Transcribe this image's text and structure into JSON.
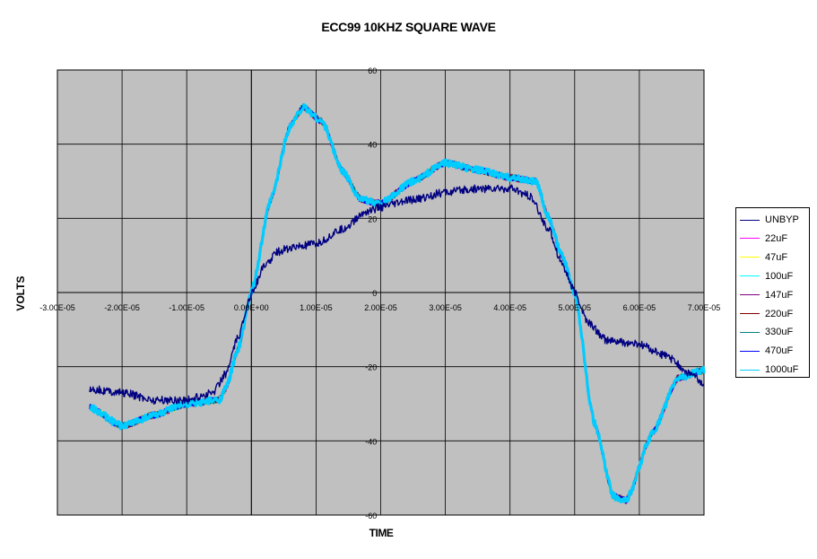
{
  "chart_data": {
    "type": "line",
    "title": "ECC99 10KHZ SQUARE WAVE",
    "xlabel": "TIME",
    "ylabel": "VOLTS",
    "xlim": [
      -3e-05,
      7e-05
    ],
    "ylim": [
      -60,
      60
    ],
    "x_ticks": [
      -3e-05,
      -2e-05,
      -1e-05,
      0,
      1e-05,
      2e-05,
      3e-05,
      4e-05,
      5e-05,
      6e-05,
      7e-05
    ],
    "x_tick_labels": [
      "-3.00E-05",
      "-2.00E-05",
      "-1.00E-05",
      "0.00E+00",
      "1.00E-05",
      "2.00E-05",
      "3.00E-05",
      "4.00E-05",
      "5.00E-05",
      "6.00E-05",
      "7.00E-05"
    ],
    "y_ticks": [
      -60,
      -40,
      -20,
      0,
      20,
      40,
      60
    ],
    "y_tick_labels": [
      "-60",
      "-40",
      "-20",
      "0",
      "20",
      "40",
      "60"
    ],
    "grid": true,
    "legend_position": "right",
    "plot_background": "#c0c0c0",
    "series": [
      {
        "name": "UNBYP",
        "color": "#000080",
        "x": [
          -2.5e-05,
          -2e-05,
          -1.5e-05,
          -1e-05,
          -6e-06,
          -4e-06,
          -2e-06,
          0,
          2e-06,
          4e-06,
          6e-06,
          1e-05,
          1.4e-05,
          1.8e-05,
          2e-05,
          2.5e-05,
          3e-05,
          3.5e-05,
          4e-05,
          4.3e-05,
          4.6e-05,
          4.8e-05,
          5e-05,
          5.2e-05,
          5.5e-05,
          6e-05,
          6.4e-05,
          6.8e-05,
          7e-05
        ],
        "y": [
          -26,
          -27,
          -29,
          -29,
          -27,
          -22,
          -12,
          0,
          7,
          11,
          12,
          13,
          17,
          22,
          23,
          25,
          27,
          28,
          28,
          26,
          17,
          8,
          0,
          -8,
          -13,
          -14,
          -17,
          -22,
          -25
        ]
      },
      {
        "name": "22uF",
        "color": "#ff00ff",
        "x": [
          -2.5e-05,
          -2e-05,
          -1.5e-05,
          -1e-05,
          -5e-06,
          -4e-06,
          -2e-06,
          0,
          3e-06,
          6e-06,
          8e-06,
          1.1e-05,
          1.4e-05,
          1.7e-05,
          2e-05,
          2.5e-05,
          3e-05,
          3.5e-05,
          4e-05,
          4.4e-05,
          4.6e-05,
          4.8e-05,
          5e-05,
          5.3e-05,
          5.6e-05,
          5.8e-05,
          6.2e-05,
          6.6e-05,
          7e-05
        ],
        "y": [
          -31,
          -36,
          -33,
          -30,
          -29,
          -26,
          -15,
          0,
          25,
          45,
          50,
          46,
          33,
          25,
          24,
          30,
          35,
          33,
          31,
          30,
          20,
          10,
          0,
          -35,
          -55,
          -56,
          -38,
          -23,
          -21
        ]
      },
      {
        "name": "47uF",
        "color": "#ffff00",
        "x": [
          -2.5e-05,
          -2e-05,
          -1.5e-05,
          -1e-05,
          -5e-06,
          -4e-06,
          -2e-06,
          0,
          3e-06,
          6e-06,
          8e-06,
          1.1e-05,
          1.4e-05,
          1.7e-05,
          2e-05,
          2.5e-05,
          3e-05,
          3.5e-05,
          4e-05,
          4.4e-05,
          4.6e-05,
          4.8e-05,
          5e-05,
          5.3e-05,
          5.6e-05,
          5.8e-05,
          6.2e-05,
          6.6e-05,
          7e-05
        ],
        "y": [
          -31,
          -36,
          -33,
          -30,
          -29,
          -26,
          -15,
          0,
          25,
          45,
          50,
          46,
          33,
          25,
          24,
          30,
          35,
          33,
          31,
          30,
          20,
          10,
          0,
          -35,
          -55,
          -56,
          -38,
          -23,
          -21
        ]
      },
      {
        "name": "100uF",
        "color": "#00ffff",
        "x": [
          -2.5e-05,
          -2e-05,
          -1.5e-05,
          -1e-05,
          -5e-06,
          -4e-06,
          -2e-06,
          0,
          3e-06,
          6e-06,
          8e-06,
          1.1e-05,
          1.4e-05,
          1.7e-05,
          2e-05,
          2.5e-05,
          3e-05,
          3.5e-05,
          4e-05,
          4.4e-05,
          4.6e-05,
          4.8e-05,
          5e-05,
          5.3e-05,
          5.6e-05,
          5.8e-05,
          6.2e-05,
          6.6e-05,
          7e-05
        ],
        "y": [
          -31,
          -36,
          -33,
          -30,
          -29,
          -26,
          -15,
          0,
          25,
          45,
          50,
          46,
          33,
          25,
          24,
          30,
          35,
          33,
          31,
          30,
          20,
          10,
          0,
          -35,
          -55,
          -56,
          -38,
          -23,
          -21
        ]
      },
      {
        "name": "147uF",
        "color": "#800080",
        "x": [
          -2.5e-05,
          -2e-05,
          -1.5e-05,
          -1e-05,
          -5e-06,
          -4e-06,
          -2e-06,
          0,
          3e-06,
          6e-06,
          8e-06,
          1.1e-05,
          1.4e-05,
          1.7e-05,
          2e-05,
          2.5e-05,
          3e-05,
          3.5e-05,
          4e-05,
          4.4e-05,
          4.6e-05,
          4.8e-05,
          5e-05,
          5.3e-05,
          5.6e-05,
          5.8e-05,
          6.2e-05,
          6.6e-05,
          7e-05
        ],
        "y": [
          -31,
          -36,
          -33,
          -30,
          -29,
          -26,
          -15,
          0,
          25,
          45,
          50,
          46,
          33,
          25,
          24,
          30,
          35,
          33,
          31,
          30,
          20,
          10,
          0,
          -35,
          -55,
          -56,
          -38,
          -23,
          -21
        ]
      },
      {
        "name": "220uF",
        "color": "#800000",
        "x": [
          -2.5e-05,
          -2e-05,
          -1.5e-05,
          -1e-05,
          -5e-06,
          -4e-06,
          -2e-06,
          0,
          3e-06,
          6e-06,
          8e-06,
          1.1e-05,
          1.4e-05,
          1.7e-05,
          2e-05,
          2.5e-05,
          3e-05,
          3.5e-05,
          4e-05,
          4.4e-05,
          4.6e-05,
          4.8e-05,
          5e-05,
          5.3e-05,
          5.6e-05,
          5.8e-05,
          6.2e-05,
          6.6e-05,
          7e-05
        ],
        "y": [
          -31,
          -36,
          -33,
          -30,
          -29,
          -26,
          -15,
          0,
          25,
          45,
          50,
          46,
          33,
          25,
          24,
          30,
          35,
          33,
          31,
          30,
          20,
          10,
          0,
          -35,
          -55,
          -56,
          -38,
          -23,
          -21
        ]
      },
      {
        "name": "330uF",
        "color": "#008080",
        "x": [
          -2.5e-05,
          -2e-05,
          -1.5e-05,
          -1e-05,
          -5e-06,
          -4e-06,
          -2e-06,
          0,
          3e-06,
          6e-06,
          8e-06,
          1.1e-05,
          1.4e-05,
          1.7e-05,
          2e-05,
          2.5e-05,
          3e-05,
          3.5e-05,
          4e-05,
          4.4e-05,
          4.6e-05,
          4.8e-05,
          5e-05,
          5.3e-05,
          5.6e-05,
          5.8e-05,
          6.2e-05,
          6.6e-05,
          7e-05
        ],
        "y": [
          -31,
          -36,
          -33,
          -30,
          -29,
          -26,
          -15,
          0,
          25,
          45,
          50,
          46,
          33,
          25,
          24,
          30,
          35,
          33,
          31,
          30,
          20,
          10,
          0,
          -35,
          -55,
          -56,
          -38,
          -23,
          -21
        ]
      },
      {
        "name": "470uF",
        "color": "#0000ff",
        "x": [
          -2.5e-05,
          -2e-05,
          -1.5e-05,
          -1e-05,
          -5e-06,
          -4e-06,
          -2e-06,
          0,
          3e-06,
          6e-06,
          8e-06,
          1.1e-05,
          1.4e-05,
          1.7e-05,
          2e-05,
          2.5e-05,
          3e-05,
          3.5e-05,
          4e-05,
          4.4e-05,
          4.6e-05,
          4.8e-05,
          5e-05,
          5.3e-05,
          5.6e-05,
          5.8e-05,
          6.2e-05,
          6.6e-05,
          7e-05
        ],
        "y": [
          -31,
          -36,
          -33,
          -30,
          -29,
          -26,
          -15,
          0,
          25,
          45,
          50,
          46,
          33,
          25,
          24,
          30,
          35,
          33,
          31,
          30,
          20,
          10,
          0,
          -35,
          -55,
          -56,
          -38,
          -23,
          -21
        ]
      },
      {
        "name": "1000uF",
        "color": "#00ccff",
        "x": [
          -2.5e-05,
          -2e-05,
          -1.5e-05,
          -1e-05,
          -5e-06,
          -4e-06,
          -2e-06,
          0,
          3e-06,
          6e-06,
          8e-06,
          1.1e-05,
          1.4e-05,
          1.7e-05,
          2e-05,
          2.5e-05,
          3e-05,
          3.5e-05,
          4e-05,
          4.4e-05,
          4.6e-05,
          4.8e-05,
          5e-05,
          5.3e-05,
          5.6e-05,
          5.8e-05,
          6.2e-05,
          6.6e-05,
          7e-05
        ],
        "y": [
          -31,
          -36,
          -33,
          -30,
          -29,
          -26,
          -15,
          0,
          25,
          45,
          50,
          46,
          33,
          25,
          24,
          30,
          35,
          33,
          31,
          30,
          20,
          10,
          0,
          -35,
          -55,
          -56,
          -38,
          -23,
          -21
        ]
      }
    ]
  }
}
